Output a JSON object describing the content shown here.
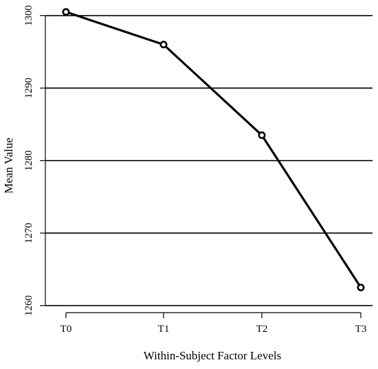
{
  "chart_data": {
    "type": "line",
    "title": "",
    "xlabel": "Within-Subject Factor Levels",
    "ylabel": "Mean Value",
    "categories": [
      "T0",
      "T1",
      "T2",
      "T3"
    ],
    "values": [
      1300.5,
      1296.0,
      1283.5,
      1262.5
    ],
    "ylim": [
      1259.5,
      1301.2
    ],
    "yticks": [
      1260,
      1270,
      1280,
      1290,
      1300
    ],
    "ytick_labels": [
      "1260",
      "1270",
      "1280",
      "1290",
      "1300"
    ],
    "grid": "horizontal lines at y ticks",
    "marker": "open circle",
    "line_color": "#000000",
    "grid_color": "#000000",
    "background_color": "#ffffff"
  }
}
